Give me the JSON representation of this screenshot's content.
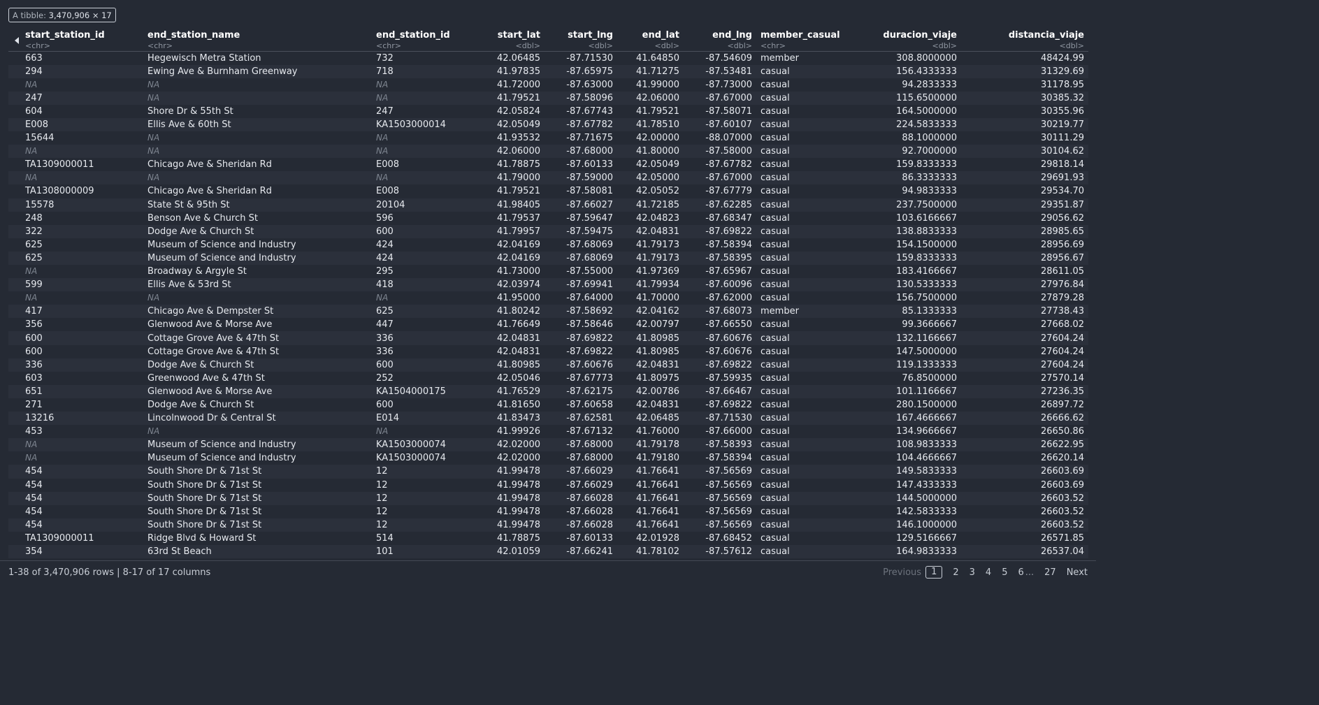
{
  "badge": {
    "label": "A tibble:",
    "value": "3,470,906 × 17"
  },
  "columns": [
    {
      "name": "start_station_id",
      "type": "<chr>",
      "align": "l"
    },
    {
      "name": "end_station_name",
      "type": "<chr>",
      "align": "l"
    },
    {
      "name": "end_station_id",
      "type": "<chr>",
      "align": "l"
    },
    {
      "name": "start_lat",
      "type": "<dbl>",
      "align": "r"
    },
    {
      "name": "start_lng",
      "type": "<dbl>",
      "align": "r"
    },
    {
      "name": "end_lat",
      "type": "<dbl>",
      "align": "r"
    },
    {
      "name": "end_lng",
      "type": "<dbl>",
      "align": "r"
    },
    {
      "name": "member_casual",
      "type": "<chr>",
      "align": "l"
    },
    {
      "name": "duracion_viaje",
      "type": "<dbl>",
      "align": "r"
    },
    {
      "name": "distancia_viaje",
      "type": "<dbl>",
      "align": "r"
    }
  ],
  "rows": [
    [
      "663",
      "Hegewisch Metra Station",
      "732",
      "42.06485",
      "-87.71530",
      "41.64850",
      "-87.54609",
      "member",
      "308.8000000",
      "48424.99"
    ],
    [
      "294",
      "Ewing Ave & Burnham Greenway",
      "718",
      "41.97835",
      "-87.65975",
      "41.71275",
      "-87.53481",
      "casual",
      "156.4333333",
      "31329.69"
    ],
    [
      "NA",
      "NA",
      "NA",
      "41.72000",
      "-87.63000",
      "41.99000",
      "-87.73000",
      "casual",
      "94.2833333",
      "31178.95"
    ],
    [
      "247",
      "NA",
      "NA",
      "41.79521",
      "-87.58096",
      "42.06000",
      "-87.67000",
      "casual",
      "115.6500000",
      "30385.32"
    ],
    [
      "604",
      "Shore Dr & 55th St",
      "247",
      "42.05824",
      "-87.67743",
      "41.79521",
      "-87.58071",
      "casual",
      "164.5000000",
      "30355.96"
    ],
    [
      "E008",
      "Ellis Ave & 60th St",
      "KA1503000014",
      "42.05049",
      "-87.67782",
      "41.78510",
      "-87.60107",
      "casual",
      "224.5833333",
      "30219.77"
    ],
    [
      "15644",
      "NA",
      "NA",
      "41.93532",
      "-87.71675",
      "42.00000",
      "-88.07000",
      "casual",
      "88.1000000",
      "30111.29"
    ],
    [
      "NA",
      "NA",
      "NA",
      "42.06000",
      "-87.68000",
      "41.80000",
      "-87.58000",
      "casual",
      "92.7000000",
      "30104.62"
    ],
    [
      "TA1309000011",
      "Chicago Ave & Sheridan Rd",
      "E008",
      "41.78875",
      "-87.60133",
      "42.05049",
      "-87.67782",
      "casual",
      "159.8333333",
      "29818.14"
    ],
    [
      "NA",
      "NA",
      "NA",
      "41.79000",
      "-87.59000",
      "42.05000",
      "-87.67000",
      "casual",
      "86.3333333",
      "29691.93"
    ],
    [
      "TA1308000009",
      "Chicago Ave & Sheridan Rd",
      "E008",
      "41.79521",
      "-87.58081",
      "42.05052",
      "-87.67779",
      "casual",
      "94.9833333",
      "29534.70"
    ],
    [
      "15578",
      "State St & 95th St",
      "20104",
      "41.98405",
      "-87.66027",
      "41.72185",
      "-87.62285",
      "casual",
      "237.7500000",
      "29351.87"
    ],
    [
      "248",
      "Benson Ave & Church St",
      "596",
      "41.79537",
      "-87.59647",
      "42.04823",
      "-87.68347",
      "casual",
      "103.6166667",
      "29056.62"
    ],
    [
      "322",
      "Dodge Ave & Church St",
      "600",
      "41.79957",
      "-87.59475",
      "42.04831",
      "-87.69822",
      "casual",
      "138.8833333",
      "28985.65"
    ],
    [
      "625",
      "Museum of Science and Industry",
      "424",
      "42.04169",
      "-87.68069",
      "41.79173",
      "-87.58394",
      "casual",
      "154.1500000",
      "28956.69"
    ],
    [
      "625",
      "Museum of Science and Industry",
      "424",
      "42.04169",
      "-87.68069",
      "41.79173",
      "-87.58395",
      "casual",
      "159.8333333",
      "28956.67"
    ],
    [
      "NA",
      "Broadway & Argyle St",
      "295",
      "41.73000",
      "-87.55000",
      "41.97369",
      "-87.65967",
      "casual",
      "183.4166667",
      "28611.05"
    ],
    [
      "599",
      "Ellis Ave & 53rd St",
      "418",
      "42.03974",
      "-87.69941",
      "41.79934",
      "-87.60096",
      "casual",
      "130.5333333",
      "27976.84"
    ],
    [
      "NA",
      "NA",
      "NA",
      "41.95000",
      "-87.64000",
      "41.70000",
      "-87.62000",
      "casual",
      "156.7500000",
      "27879.28"
    ],
    [
      "417",
      "Chicago Ave & Dempster St",
      "625",
      "41.80242",
      "-87.58692",
      "42.04162",
      "-87.68073",
      "member",
      "85.1333333",
      "27738.43"
    ],
    [
      "356",
      "Glenwood Ave & Morse Ave",
      "447",
      "41.76649",
      "-87.58646",
      "42.00797",
      "-87.66550",
      "casual",
      "99.3666667",
      "27668.02"
    ],
    [
      "600",
      "Cottage Grove Ave & 47th St",
      "336",
      "42.04831",
      "-87.69822",
      "41.80985",
      "-87.60676",
      "casual",
      "132.1166667",
      "27604.24"
    ],
    [
      "600",
      "Cottage Grove Ave & 47th St",
      "336",
      "42.04831",
      "-87.69822",
      "41.80985",
      "-87.60676",
      "casual",
      "147.5000000",
      "27604.24"
    ],
    [
      "336",
      "Dodge Ave & Church St",
      "600",
      "41.80985",
      "-87.60676",
      "42.04831",
      "-87.69822",
      "casual",
      "119.1333333",
      "27604.24"
    ],
    [
      "603",
      "Greenwood Ave & 47th St",
      "252",
      "42.05046",
      "-87.67773",
      "41.80975",
      "-87.59935",
      "casual",
      "76.8500000",
      "27570.14"
    ],
    [
      "651",
      "Glenwood Ave & Morse Ave",
      "KA1504000175",
      "41.76529",
      "-87.62175",
      "42.00786",
      "-87.66467",
      "casual",
      "101.1166667",
      "27236.35"
    ],
    [
      "271",
      "Dodge Ave & Church St",
      "600",
      "41.81650",
      "-87.60658",
      "42.04831",
      "-87.69822",
      "casual",
      "280.1500000",
      "26897.72"
    ],
    [
      "13216",
      "Lincolnwood Dr & Central St",
      "E014",
      "41.83473",
      "-87.62581",
      "42.06485",
      "-87.71530",
      "casual",
      "167.4666667",
      "26666.62"
    ],
    [
      "453",
      "NA",
      "NA",
      "41.99926",
      "-87.67132",
      "41.76000",
      "-87.66000",
      "casual",
      "134.9666667",
      "26650.86"
    ],
    [
      "NA",
      "Museum of Science and Industry",
      "KA1503000074",
      "42.02000",
      "-87.68000",
      "41.79178",
      "-87.58393",
      "casual",
      "108.9833333",
      "26622.95"
    ],
    [
      "NA",
      "Museum of Science and Industry",
      "KA1503000074",
      "42.02000",
      "-87.68000",
      "41.79180",
      "-87.58394",
      "casual",
      "104.4666667",
      "26620.14"
    ],
    [
      "454",
      "South Shore Dr & 71st St",
      "12",
      "41.99478",
      "-87.66029",
      "41.76641",
      "-87.56569",
      "casual",
      "149.5833333",
      "26603.69"
    ],
    [
      "454",
      "South Shore Dr & 71st St",
      "12",
      "41.99478",
      "-87.66029",
      "41.76641",
      "-87.56569",
      "casual",
      "147.4333333",
      "26603.69"
    ],
    [
      "454",
      "South Shore Dr & 71st St",
      "12",
      "41.99478",
      "-87.66028",
      "41.76641",
      "-87.56569",
      "casual",
      "144.5000000",
      "26603.52"
    ],
    [
      "454",
      "South Shore Dr & 71st St",
      "12",
      "41.99478",
      "-87.66028",
      "41.76641",
      "-87.56569",
      "casual",
      "142.5833333",
      "26603.52"
    ],
    [
      "454",
      "South Shore Dr & 71st St",
      "12",
      "41.99478",
      "-87.66028",
      "41.76641",
      "-87.56569",
      "casual",
      "146.1000000",
      "26603.52"
    ],
    [
      "TA1309000011",
      "Ridge Blvd & Howard St",
      "514",
      "41.78875",
      "-87.60133",
      "42.01928",
      "-87.68452",
      "casual",
      "129.5166667",
      "26571.85"
    ],
    [
      "354",
      "63rd St Beach",
      "101",
      "42.01059",
      "-87.66241",
      "41.78102",
      "-87.57612",
      "casual",
      "164.9833333",
      "26537.04"
    ]
  ],
  "footer": {
    "info": "1-38 of 3,470,906 rows | 8-17 of 17 columns",
    "previous": "Previous",
    "pages": [
      "1",
      "2",
      "3",
      "4",
      "5",
      "6"
    ],
    "ellipsis": "...",
    "last_page": "27",
    "next": "Next"
  }
}
